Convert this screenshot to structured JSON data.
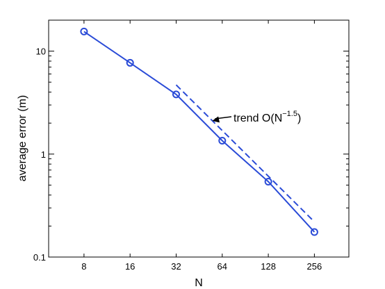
{
  "chart_data": {
    "type": "line",
    "title": "",
    "xlabel": "N",
    "ylabel": "average error (m)",
    "xscale": "log2",
    "yscale": "log10",
    "xlim": [
      4.7,
      430
    ],
    "ylim": [
      0.1,
      20
    ],
    "x_ticks": [
      8,
      16,
      32,
      64,
      128,
      256
    ],
    "x_tick_labels": [
      "8",
      "16",
      "32",
      "64",
      "128",
      "256"
    ],
    "y_ticks": [
      0.1,
      1,
      10
    ],
    "y_tick_labels": [
      "0.1",
      "1",
      "10"
    ],
    "grid": false,
    "series": [
      {
        "style": "solid-circle-markers",
        "color": "#2a4bd7",
        "x": [
          8,
          16,
          32,
          64,
          128,
          256
        ],
        "y": [
          15.5,
          7.7,
          3.8,
          1.35,
          0.54,
          0.175
        ]
      },
      {
        "style": "dashed",
        "color": "#2a4bd7",
        "x": [
          32,
          256
        ],
        "y": [
          4.7,
          0.22
        ]
      }
    ],
    "annotation": {
      "text_main": "trend O(N",
      "text_sup": "−1.5",
      "text_end": ")",
      "arrow_target": {
        "x": 55,
        "y": 2.1
      }
    }
  }
}
